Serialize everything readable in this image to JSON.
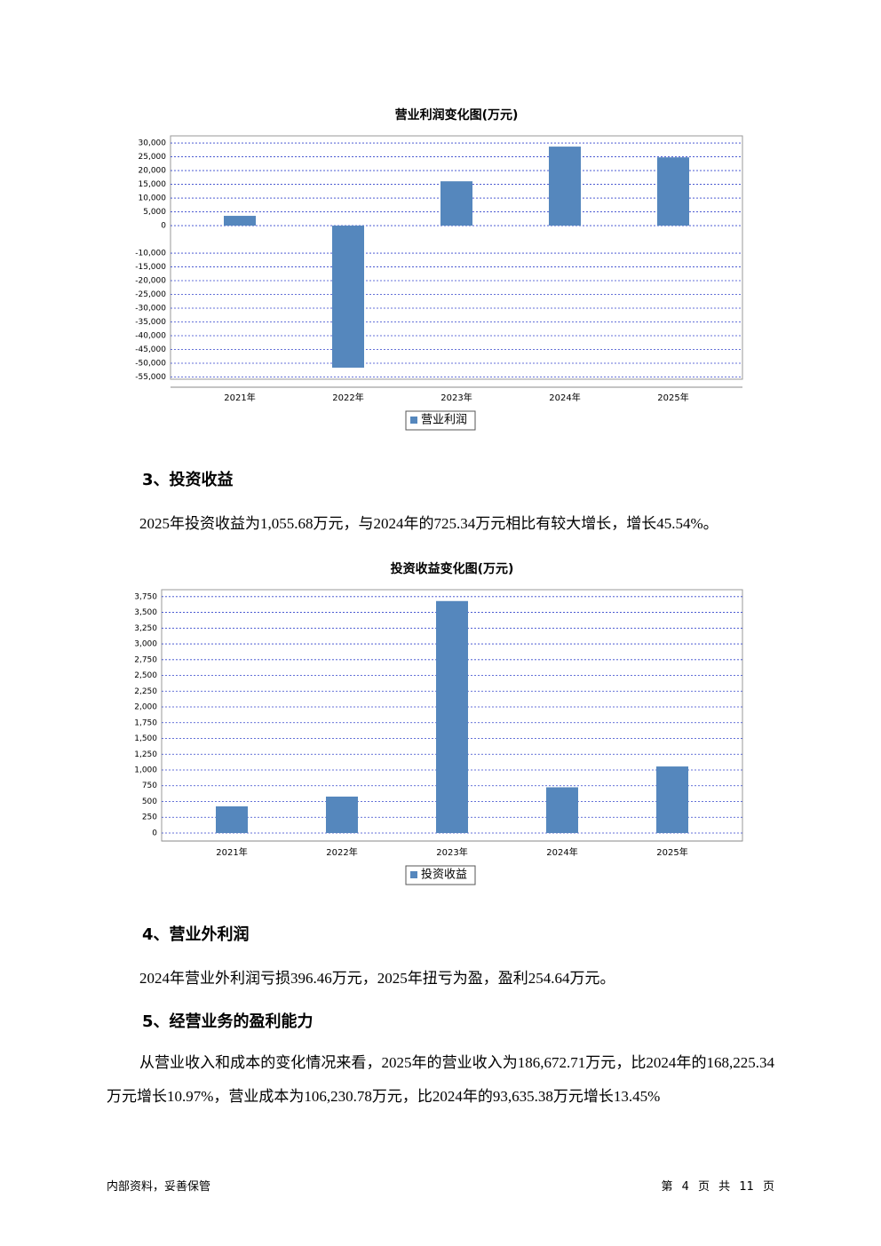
{
  "chart_data": [
    {
      "type": "bar",
      "title": "营业利润变化图(万元)",
      "categories": [
        "2021年",
        "2022年",
        "2023年",
        "2024年",
        "2025年"
      ],
      "series": [
        {
          "name": "营业利润",
          "color": "#5587bd",
          "values": [
            3550,
            -51600,
            16100,
            28700,
            24800
          ]
        }
      ],
      "ylim": [
        -55800,
        32600
      ],
      "yticks": [
        {
          "value": 30000,
          "label": "30,000"
        },
        {
          "value": 25000,
          "label": "25,000"
        },
        {
          "value": 20000,
          "label": "20,000"
        },
        {
          "value": 15000,
          "label": "15,000"
        },
        {
          "value": 10000,
          "label": "10,000"
        },
        {
          "value": 5000,
          "label": "5,000"
        },
        0,
        {
          "value": -10000,
          "label": "-10,000"
        },
        {
          "value": -15000,
          "label": "-15,000"
        },
        {
          "value": -20000,
          "label": "-20,000"
        },
        {
          "value": -25000,
          "label": "-25,000"
        },
        {
          "value": -30000,
          "label": "-30,000"
        },
        {
          "value": -35000,
          "label": "-35,000"
        },
        {
          "value": -40000,
          "label": "-40,000"
        },
        {
          "value": -45000,
          "label": "-45,000"
        },
        {
          "value": -50000,
          "label": "-50,000"
        },
        {
          "value": -55000,
          "label": "-55,000"
        }
      ],
      "grid": true
    },
    {
      "type": "bar",
      "title": "投资收益变化图(万元)",
      "categories": [
        "2021年",
        "2022年",
        "2023年",
        "2024年",
        "2025年"
      ],
      "series": [
        {
          "name": "投资收益",
          "color": "#5587bd",
          "values": [
            423,
            578,
            3680,
            725.34,
            1055.68
          ]
        }
      ],
      "ylim": [
        -127,
        3860
      ],
      "yticks": [
        {
          "value": 3750,
          "label": "3,750"
        },
        {
          "value": 3500,
          "label": "3,500"
        },
        {
          "value": 3250,
          "label": "3,250"
        },
        {
          "value": 3000,
          "label": "3,000"
        },
        {
          "value": 2750,
          "label": "2,750"
        },
        {
          "value": 2500,
          "label": "2,500"
        },
        {
          "value": 2250,
          "label": "2,250"
        },
        {
          "value": 2000,
          "label": "2,000"
        },
        {
          "value": 1750,
          "label": "1,750"
        },
        {
          "value": 1500,
          "label": "1,500"
        },
        {
          "value": 1250,
          "label": "1,250"
        },
        {
          "value": 1000,
          "label": "1,000"
        },
        750,
        500,
        250,
        0
      ],
      "grid": true
    }
  ],
  "sections": [
    {
      "heading": "3、投资收益",
      "paragraphs": [
        "2025年投资收益为1,055.68万元，与2024年的725.34万元相比有较大增长，增长45.54%。"
      ]
    },
    {
      "heading": "4、营业外利润",
      "paragraphs": [
        "2024年营业外利润亏损396.46万元，2025年扭亏为盈，盈利254.64万元。"
      ]
    },
    {
      "heading": "5、经营业务的盈利能力",
      "paragraphs": [
        "从营业收入和成本的变化情况来看，2025年的营业收入为186,672.71万元，比2024年的168,225.34万元增长10.97%，营业成本为106,230.78万元，比2024年的93,635.38万元增长13.45%"
      ]
    }
  ],
  "footer": {
    "left": "内部资料，妥善保管",
    "right": "第 4 页 共 11 页"
  }
}
